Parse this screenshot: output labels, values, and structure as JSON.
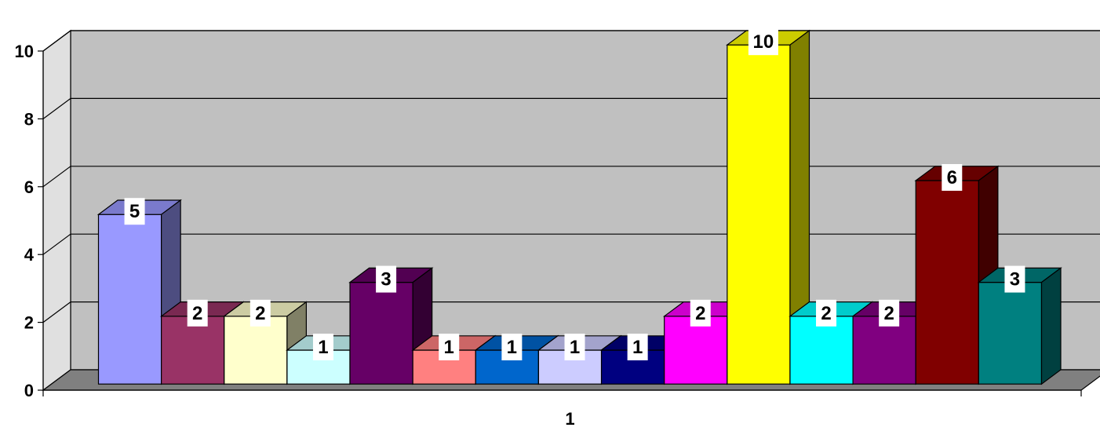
{
  "chart_data": {
    "type": "bar",
    "title": "",
    "xlabel": "",
    "ylabel": "",
    "categories": [
      "1"
    ],
    "ylim": [
      0,
      10
    ],
    "y_ticks": [
      "0",
      "2",
      "4",
      "6",
      "8",
      "10"
    ],
    "grid": true,
    "legend": "none",
    "three_d": true,
    "series": [
      {
        "values": [
          5
        ],
        "color": "#9999ff"
      },
      {
        "values": [
          2
        ],
        "color": "#993366"
      },
      {
        "values": [
          2
        ],
        "color": "#ffffcc"
      },
      {
        "values": [
          1
        ],
        "color": "#ccffff"
      },
      {
        "values": [
          3
        ],
        "color": "#660066"
      },
      {
        "values": [
          1
        ],
        "color": "#ff8080"
      },
      {
        "values": [
          1
        ],
        "color": "#0066cc"
      },
      {
        "values": [
          1
        ],
        "color": "#ccccff"
      },
      {
        "values": [
          1
        ],
        "color": "#000080"
      },
      {
        "values": [
          2
        ],
        "color": "#ff00ff"
      },
      {
        "values": [
          10
        ],
        "color": "#ffff00"
      },
      {
        "values": [
          2
        ],
        "color": "#00ffff"
      },
      {
        "values": [
          2
        ],
        "color": "#800080"
      },
      {
        "values": [
          6
        ],
        "color": "#800000"
      },
      {
        "values": [
          3
        ],
        "color": "#008080"
      }
    ],
    "colors": {
      "back_wall": "#c0c0c0",
      "floor": "#808080",
      "side_wall": "#e0e0e0"
    }
  }
}
